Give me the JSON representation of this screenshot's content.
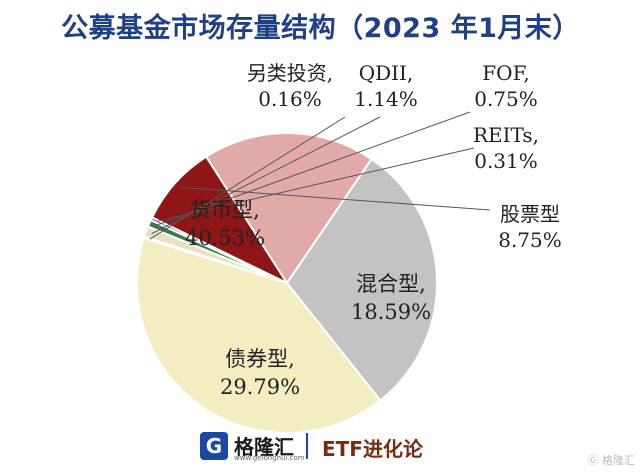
{
  "title": "公募基金市场存量结构（2023 年1月末）",
  "footer": {
    "logo_mark": "G",
    "logo_text": "格隆汇",
    "logo_url": "www.gelonghui.com",
    "brand": "ETF进化论",
    "watermark": "Ⓖ 格隆汇"
  },
  "chart_data": {
    "type": "pie",
    "title": "公募基金市场存量结构（2023 年1月末）",
    "unit": "%",
    "slices": [
      {
        "name": "QDII",
        "value": 1.14,
        "label": "1.14%",
        "color": "#e8e1c0"
      },
      {
        "name": "FOF",
        "value": 0.75,
        "label": "0.75%",
        "color": "#3f7a4a"
      },
      {
        "name": "REITs",
        "value": 0.31,
        "label": "0.31%",
        "color": "#1f3c7a"
      },
      {
        "name": "股票型",
        "value": 8.75,
        "label": "8.75%",
        "color": "#8e1616"
      },
      {
        "name": "混合型",
        "value": 18.59,
        "label": "18.59%",
        "color": "#e2a9a9"
      },
      {
        "name": "债券型",
        "value": 29.79,
        "label": "29.79%",
        "color": "#c3c3c3"
      },
      {
        "name": "货币型",
        "value": 40.53,
        "label": "40.53%",
        "color": "#f2eec1"
      },
      {
        "name": "另类投资",
        "value": 0.16,
        "label": "0.16%",
        "color": "#e28a72"
      }
    ]
  }
}
